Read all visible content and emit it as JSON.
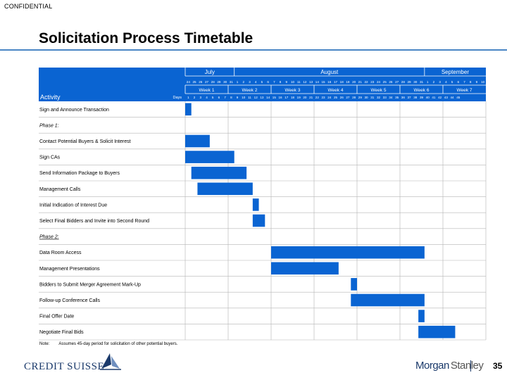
{
  "header": {
    "confidential": "CONFIDENTIAL",
    "title": "Solicitation Process Timetable"
  },
  "gantt": {
    "activity_label": "Activity",
    "days_label": "Days",
    "months": [
      {
        "label": "July",
        "from": 1,
        "to": 8
      },
      {
        "label": "August",
        "from": 9,
        "to": 39
      },
      {
        "label": "September",
        "from": 40,
        "to": 49
      }
    ],
    "dates": [
      24,
      25,
      26,
      27,
      28,
      29,
      30,
      31,
      1,
      2,
      3,
      4,
      5,
      6,
      7,
      8,
      9,
      10,
      11,
      12,
      13,
      14,
      15,
      16,
      17,
      18,
      19,
      20,
      21,
      22,
      23,
      24,
      25,
      26,
      27,
      28,
      29,
      30,
      31,
      1,
      2,
      3,
      4,
      5,
      6,
      7,
      8,
      9,
      10
    ],
    "weeks": [
      {
        "label": "Week 1",
        "from": 1,
        "to": 7
      },
      {
        "label": "Week 2",
        "from": 8,
        "to": 14
      },
      {
        "label": "Week 3",
        "from": 15,
        "to": 21
      },
      {
        "label": "Week 4",
        "from": 22,
        "to": 28
      },
      {
        "label": "Week 5",
        "from": 29,
        "to": 35
      },
      {
        "label": "Week 6",
        "from": 36,
        "to": 42
      },
      {
        "label": "Week 7",
        "from": 43,
        "to": 49
      }
    ],
    "day_numbers": [
      1,
      2,
      3,
      4,
      5,
      6,
      7,
      8,
      9,
      10,
      11,
      12,
      13,
      14,
      15,
      16,
      17,
      18,
      19,
      20,
      21,
      22,
      23,
      24,
      25,
      26,
      27,
      28,
      29,
      30,
      31,
      32,
      33,
      34,
      35,
      36,
      37,
      38,
      39,
      40,
      41,
      42,
      43,
      44,
      45
    ],
    "rows": [
      {
        "label": "Sign and Announce Transaction",
        "start": 1,
        "end": 1
      },
      {
        "label": "Phase 1:",
        "italic": true
      },
      {
        "label": "Contact Potential Buyers & Solicit Interest",
        "start": 1,
        "end": 4
      },
      {
        "label": "Sign CAs",
        "start": 1,
        "end": 8
      },
      {
        "label": "Send Information Package to Buyers",
        "start": 2,
        "end": 10
      },
      {
        "label": "Management Calls",
        "start": 3,
        "end": 11
      },
      {
        "label": "Initial Indication of Interest Due",
        "start": 12,
        "end": 12
      },
      {
        "label": "Select Final Bidders and Invite into Second Round",
        "start": 12,
        "end": 13
      },
      {
        "label": "Phase 2:",
        "italic": true,
        "underline": true
      },
      {
        "label": "Data Room Access",
        "start": 15,
        "end": 39
      },
      {
        "label": "Management Presentations",
        "start": 15,
        "end": 25
      },
      {
        "label": "Bidders to Submit Merger Agreement Mark-Up",
        "start": 28,
        "end": 28
      },
      {
        "label": "Follow-up Conference Calls",
        "start": 28,
        "end": 39
      },
      {
        "label": "Final Offer Date",
        "start": 39,
        "end": 39
      },
      {
        "label": "Negotiate Final Bids",
        "start": 39,
        "end": 44
      }
    ]
  },
  "note": {
    "label": "Note:",
    "text": "Assumes 45-day period for solicitation of other potential buyers."
  },
  "footer": {
    "left_logo": "CREDIT SUISSE",
    "right_logo_part1": "Morgan",
    "right_logo_part2": "Stanley",
    "page_number": "35"
  },
  "colors": {
    "header_blue": "#0a64d2",
    "bar_blue": "#0a64d2",
    "title_rule": "#4a86c5",
    "grid": "#b4b4b4"
  }
}
